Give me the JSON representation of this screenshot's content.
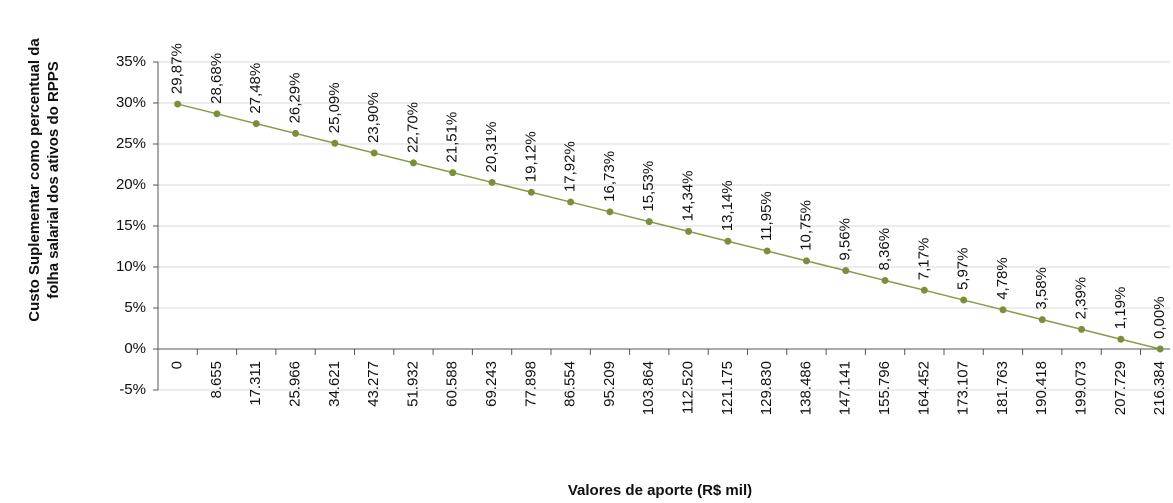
{
  "chart_data": {
    "type": "line",
    "xlabel": "Valores de aporte (R$ mil)",
    "ylabel": [
      "Custo Suplementar como percentual da",
      "folha salarial dos ativos do RPPS"
    ],
    "categories": [
      "0",
      "8.655",
      "17.311",
      "25.966",
      "34.621",
      "43.277",
      "51.932",
      "60.588",
      "69.243",
      "77.898",
      "86.554",
      "95.209",
      "103.864",
      "112.520",
      "121.175",
      "129.830",
      "138.486",
      "147.141",
      "155.796",
      "164.452",
      "173.107",
      "181.763",
      "190.418",
      "199.073",
      "207.729",
      "216.384"
    ],
    "series": [
      {
        "color": "#8a9a4a",
        "values": [
          29.87,
          28.68,
          27.48,
          26.29,
          25.09,
          23.9,
          22.7,
          21.51,
          20.31,
          19.12,
          17.92,
          16.73,
          15.53,
          14.34,
          13.14,
          11.95,
          10.75,
          9.56,
          8.36,
          7.17,
          5.97,
          4.78,
          3.58,
          2.39,
          1.19,
          0.0
        ],
        "value_labels": [
          "29,87%",
          "28,68%",
          "27,48%",
          "26,29%",
          "25,09%",
          "23,90%",
          "22,70%",
          "21,51%",
          "20,31%",
          "19,12%",
          "17,92%",
          "16,73%",
          "15,53%",
          "14,34%",
          "13,14%",
          "11,95%",
          "10,75%",
          "9,56%",
          "8,36%",
          "7,17%",
          "5,97%",
          "4,78%",
          "3,58%",
          "2,39%",
          "1,19%",
          "0,00%"
        ]
      }
    ],
    "ylim": [
      -5,
      35
    ],
    "yticks": [
      {
        "value": -5,
        "label": "-5%"
      },
      {
        "value": 0,
        "label": "0%"
      },
      {
        "value": 5,
        "label": "5%"
      },
      {
        "value": 10,
        "label": "10%"
      },
      {
        "value": 15,
        "label": "15%"
      },
      {
        "value": 20,
        "label": "20%"
      },
      {
        "value": 25,
        "label": "25%"
      },
      {
        "value": 30,
        "label": "30%"
      },
      {
        "value": 35,
        "label": "35%"
      }
    ],
    "grid": true
  }
}
